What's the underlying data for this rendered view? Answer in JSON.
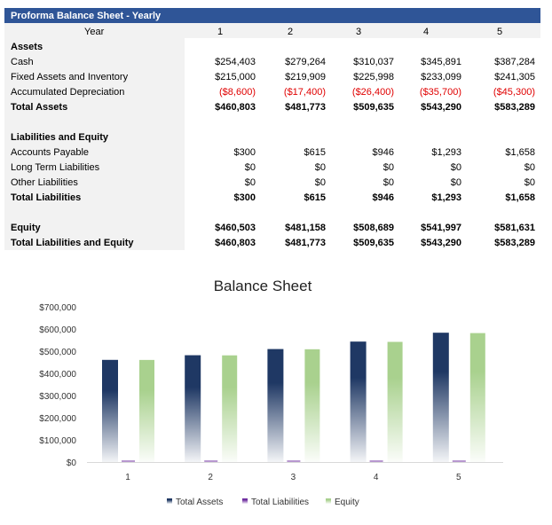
{
  "table": {
    "title": "Proforma Balance Sheet - Yearly",
    "year_label": "Year",
    "years": [
      "1",
      "2",
      "3",
      "4",
      "5"
    ],
    "rows": [
      {
        "label": "Assets",
        "bold": true,
        "values": []
      },
      {
        "label": "Cash",
        "values": [
          "$254,403",
          "$279,264",
          "$310,037",
          "$345,891",
          "$387,284"
        ]
      },
      {
        "label": "Fixed Assets and Inventory",
        "values": [
          "$215,000",
          "$219,909",
          "$225,998",
          "$233,099",
          "$241,305"
        ]
      },
      {
        "label": "Accumulated Depreciation",
        "negative": true,
        "values": [
          "($8,600)",
          "($17,400)",
          "($26,400)",
          "($35,700)",
          "($45,300)"
        ]
      },
      {
        "label": "Total Assets",
        "bold": true,
        "values": [
          "$460,803",
          "$481,773",
          "$509,635",
          "$543,290",
          "$583,289"
        ]
      },
      {
        "label": "",
        "values": []
      },
      {
        "label": "Liabilities and Equity",
        "bold": true,
        "values": []
      },
      {
        "label": "Accounts Payable",
        "values": [
          "$300",
          "$615",
          "$946",
          "$1,293",
          "$1,658"
        ]
      },
      {
        "label": "Long Term Liabilities",
        "values": [
          "$0",
          "$0",
          "$0",
          "$0",
          "$0"
        ]
      },
      {
        "label": "Other Liabilities",
        "values": [
          "$0",
          "$0",
          "$0",
          "$0",
          "$0"
        ]
      },
      {
        "label": "Total Liabilities",
        "bold": true,
        "values": [
          "$300",
          "$615",
          "$946",
          "$1,293",
          "$1,658"
        ]
      },
      {
        "label": "",
        "values": []
      },
      {
        "label": "Equity",
        "bold": true,
        "values": [
          "$460,503",
          "$481,158",
          "$508,689",
          "$541,997",
          "$581,631"
        ]
      },
      {
        "label": "Total Liabilities and Equity",
        "bold": true,
        "values": [
          "$460,803",
          "$481,773",
          "$509,635",
          "$543,290",
          "$583,289"
        ]
      }
    ]
  },
  "chart_data": {
    "type": "bar",
    "title": "Balance Sheet",
    "categories": [
      "1",
      "2",
      "3",
      "4",
      "5"
    ],
    "ylim": [
      0,
      700000
    ],
    "yticks": [
      "$0",
      "$100,000",
      "$200,000",
      "$300,000",
      "$400,000",
      "$500,000",
      "$600,000",
      "$700,000"
    ],
    "grid": false,
    "legend": "bottom",
    "series": [
      {
        "name": "Total Assets",
        "color": "#1f3864",
        "values": [
          460803,
          481773,
          509635,
          543290,
          583289
        ]
      },
      {
        "name": "Total Liabilities",
        "color": "#7030a0",
        "values": [
          300,
          615,
          946,
          1293,
          1658
        ]
      },
      {
        "name": "Equity",
        "color": "#a9d18e",
        "values": [
          460503,
          481158,
          508689,
          541997,
          581631
        ]
      }
    ]
  }
}
